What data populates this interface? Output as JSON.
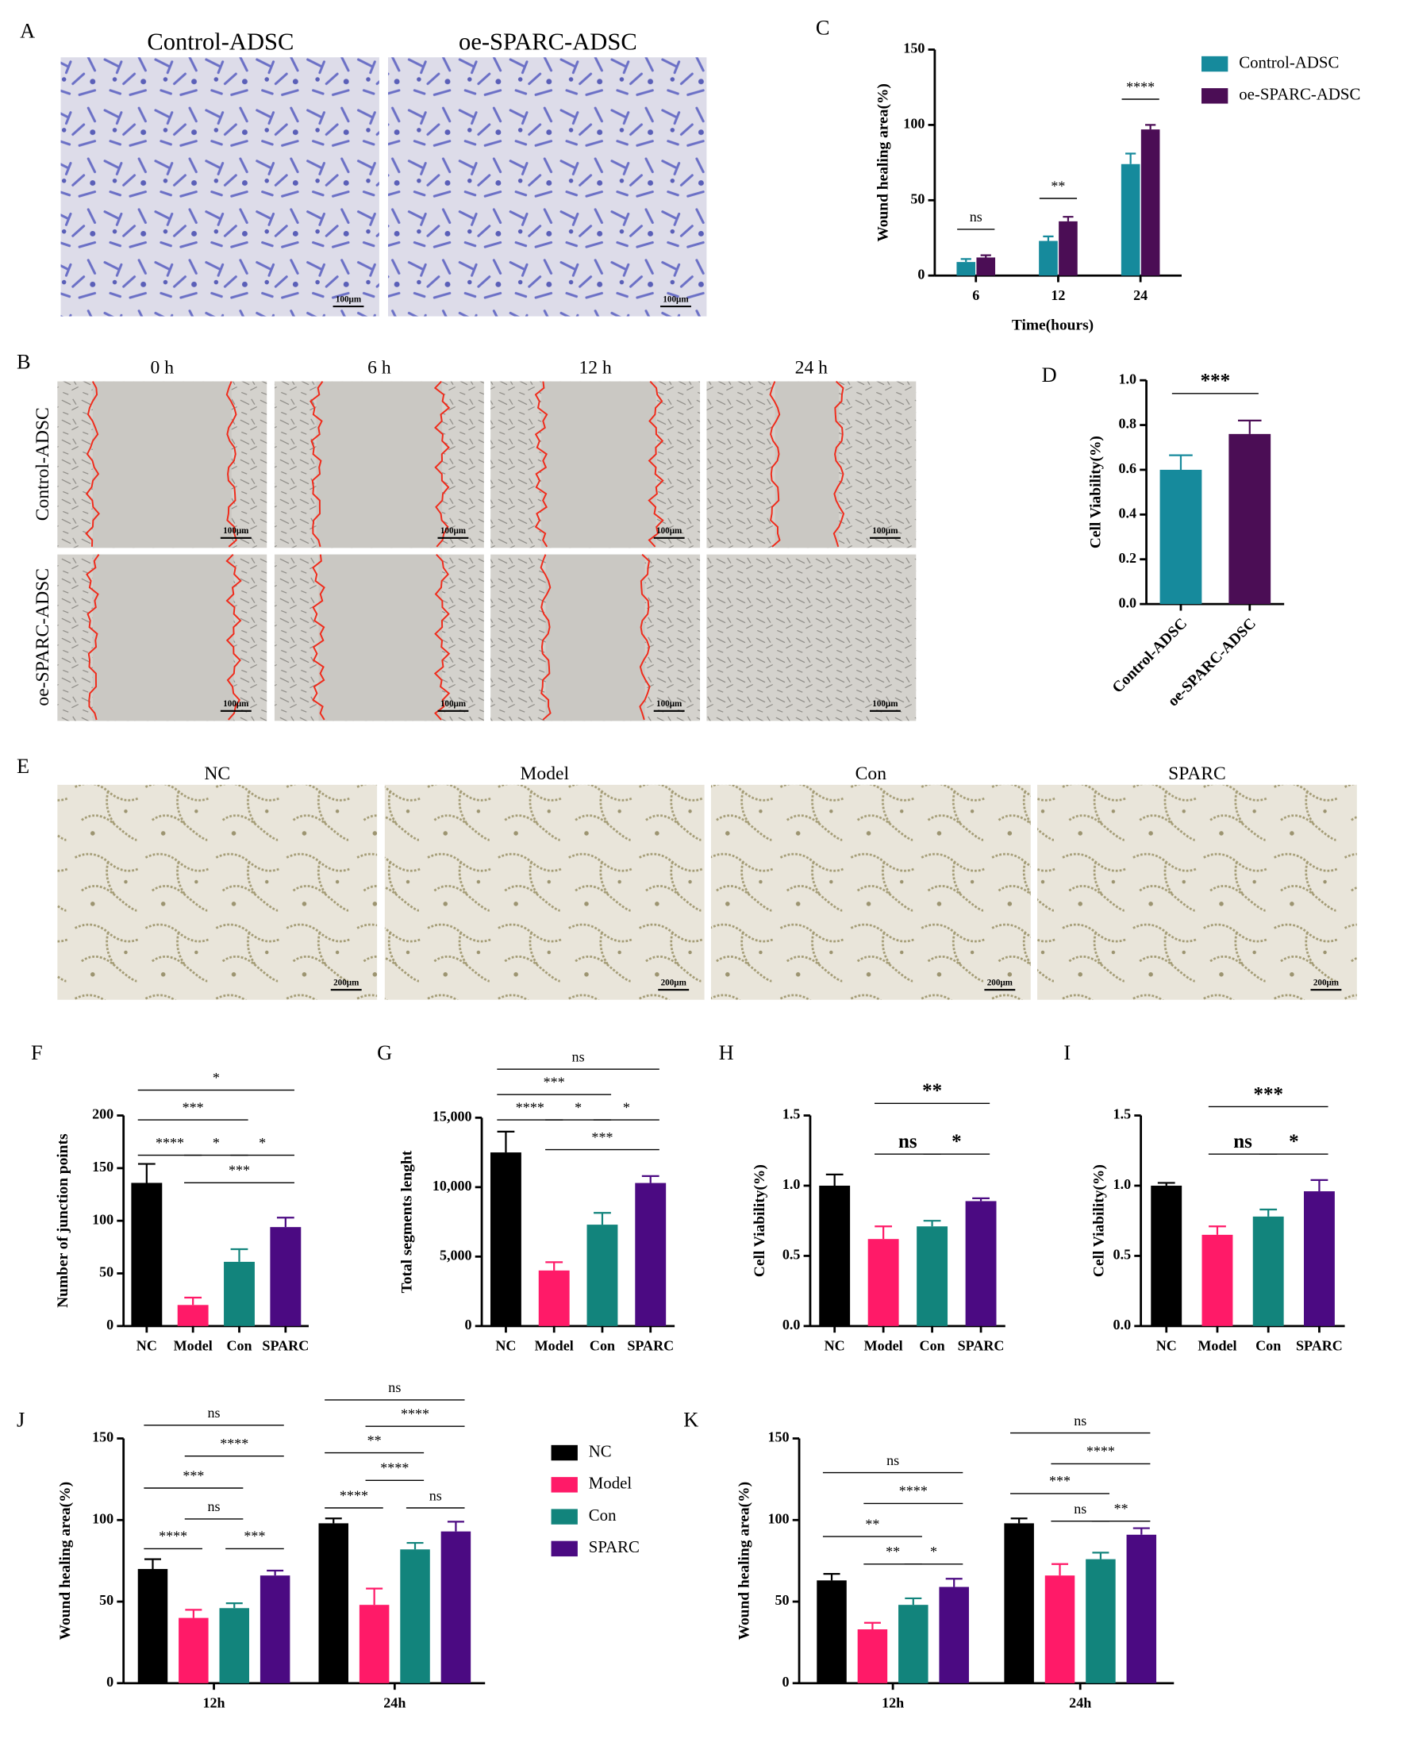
{
  "panel_labels": [
    "A",
    "B",
    "C",
    "D",
    "E",
    "F",
    "G",
    "H",
    "I",
    "J",
    "K"
  ],
  "panel_a": {
    "labels": [
      "Control-ADSC",
      "oe-SPARC-ADSC"
    ],
    "scale_bar": "100μm"
  },
  "panel_b": {
    "columns": [
      "0 h",
      "6 h",
      "12 h",
      "24 h"
    ],
    "rows": [
      "Control-ADSC",
      "oe-SPARC-ADSC"
    ],
    "scale_bar": "100μm"
  },
  "panel_e": {
    "labels": [
      "NC",
      "Model",
      "Con",
      "SPARC"
    ],
    "scale_bar": "200μm"
  },
  "chart_data": [
    {
      "type": "bar",
      "x_label": "Time(hours)",
      "y_label": "Wound healing area(%)",
      "categories": [
        "6",
        "12",
        "24"
      ],
      "series": [
        {
          "name": "Control-ADSC",
          "color": "#168a9c",
          "values": [
            9,
            23,
            74
          ],
          "errors": [
            2,
            3,
            7
          ]
        },
        {
          "name": "oe-SPARC-ADSC",
          "color": "#4b0d55",
          "values": [
            12,
            36,
            97
          ],
          "errors": [
            1.5,
            3,
            3
          ]
        }
      ],
      "ylim": [
        0,
        150
      ],
      "yticks": [
        0,
        50,
        100,
        150
      ],
      "legend": true,
      "annotations": [
        "ns",
        "**",
        "****"
      ]
    },
    {
      "type": "bar",
      "y_label": "Cell Viability(%)",
      "categories": [
        "Control-ADSC",
        "oe-SPARC-ADSC"
      ],
      "values": [
        0.6,
        0.76
      ],
      "errors": [
        0.065,
        0.06
      ],
      "colors": [
        "#168a9c",
        "#4b0d55"
      ],
      "ylim": [
        0,
        1
      ],
      "yticks": [
        {
          "value": 0,
          "label": "0.0"
        },
        0.2,
        0.4,
        0.6,
        0.8,
        {
          "value": 1,
          "label": "1.0"
        }
      ],
      "annotations": [
        "***"
      ]
    },
    {
      "type": "bar",
      "y_label": "Number of junction points",
      "categories": [
        "NC",
        "Model",
        "Con",
        "SPARC"
      ],
      "values": [
        136,
        20,
        61,
        94
      ],
      "errors": [
        18,
        7,
        12,
        9
      ],
      "colors": [
        "#000000",
        "#ff1a68",
        "#12847c",
        "#4b0a82"
      ],
      "ylim": [
        0,
        200
      ],
      "yticks": [
        0,
        50,
        100,
        150,
        200
      ],
      "annotations": [
        "*",
        "***",
        "****",
        "*",
        "*",
        "***"
      ]
    },
    {
      "type": "bar",
      "y_label": "Total segments lenght",
      "categories": [
        "NC",
        "Model",
        "Con",
        "SPARC"
      ],
      "values": [
        12500,
        4000,
        7300,
        10300
      ],
      "errors": [
        1500,
        600,
        850,
        500
      ],
      "colors": [
        "#000000",
        "#ff1a68",
        "#12847c",
        "#4b0a82"
      ],
      "ylim": [
        0,
        15000
      ],
      "yticks": [
        0,
        {
          "value": 5000,
          "label": "5,000"
        },
        {
          "value": 10000,
          "label": "10,000"
        },
        {
          "value": 15000,
          "label": "15,000"
        }
      ],
      "annotations": [
        "ns",
        "***",
        "****",
        "*",
        "*",
        "***"
      ]
    },
    {
      "type": "bar",
      "y_label": "Cell Viability(%)",
      "categories": [
        "NC",
        "Model",
        "Con",
        "SPARC"
      ],
      "values": [
        1.0,
        0.62,
        0.71,
        0.89
      ],
      "errors": [
        0.08,
        0.09,
        0.04,
        0.02
      ],
      "colors": [
        "#000000",
        "#ff1a68",
        "#12847c",
        "#4b0a82"
      ],
      "ylim": [
        0,
        1.5
      ],
      "yticks": [
        {
          "value": 0,
          "label": "0.0"
        },
        0.5,
        {
          "value": 1,
          "label": "1.0"
        },
        1.5
      ],
      "annotations": [
        "**",
        "ns",
        "*"
      ]
    },
    {
      "type": "bar",
      "y_label": "Cell Viability(%)",
      "categories": [
        "NC",
        "Model",
        "Con",
        "SPARC"
      ],
      "values": [
        1.0,
        0.65,
        0.78,
        0.96
      ],
      "errors": [
        0.02,
        0.06,
        0.05,
        0.08
      ],
      "colors": [
        "#000000",
        "#ff1a68",
        "#12847c",
        "#4b0a82"
      ],
      "ylim": [
        0,
        1.5
      ],
      "yticks": [
        {
          "value": 0,
          "label": "0.0"
        },
        0.5,
        {
          "value": 1,
          "label": "1.0"
        },
        1.5
      ],
      "annotations": [
        "***",
        "ns",
        "*"
      ]
    },
    {
      "type": "bar",
      "y_label": "Wound healing area(%)",
      "categories": [
        "12h",
        "24h"
      ],
      "series": [
        {
          "name": "NC",
          "color": "#000000",
          "values": [
            70,
            98
          ],
          "errors": [
            6,
            3
          ]
        },
        {
          "name": "Model",
          "color": "#ff1a68",
          "values": [
            40,
            48
          ],
          "errors": [
            5,
            10
          ]
        },
        {
          "name": "Con",
          "color": "#12847c",
          "values": [
            46,
            82
          ],
          "errors": [
            3,
            4
          ]
        },
        {
          "name": "SPARC",
          "color": "#4b0a82",
          "values": [
            66,
            93
          ],
          "errors": [
            3,
            6
          ]
        }
      ],
      "ylim": [
        0,
        150
      ],
      "yticks": [
        0,
        50,
        100,
        150
      ],
      "legend": true,
      "annotations": [
        "ns",
        "****",
        "***",
        "ns",
        "****",
        "***",
        "ns",
        "****",
        "**",
        "****",
        "****",
        "ns"
      ]
    },
    {
      "type": "bar",
      "y_label": "Wound healing area(%)",
      "categories": [
        "12h",
        "24h"
      ],
      "series": [
        {
          "name": "NC",
          "color": "#000000",
          "values": [
            63,
            98
          ],
          "errors": [
            4,
            3
          ]
        },
        {
          "name": "Model",
          "color": "#ff1a68",
          "values": [
            33,
            66
          ],
          "errors": [
            4,
            7
          ]
        },
        {
          "name": "Con",
          "color": "#12847c",
          "values": [
            48,
            76
          ],
          "errors": [
            4,
            4
          ]
        },
        {
          "name": "SPARC",
          "color": "#4b0a82",
          "values": [
            59,
            91
          ],
          "errors": [
            5,
            4
          ]
        }
      ],
      "ylim": [
        0,
        150
      ],
      "yticks": [
        0,
        50,
        100,
        150
      ],
      "legend": false,
      "annotations": [
        "ns",
        "****",
        "**",
        "**",
        "*",
        "ns",
        "****",
        "***",
        "ns",
        "**"
      ]
    }
  ]
}
